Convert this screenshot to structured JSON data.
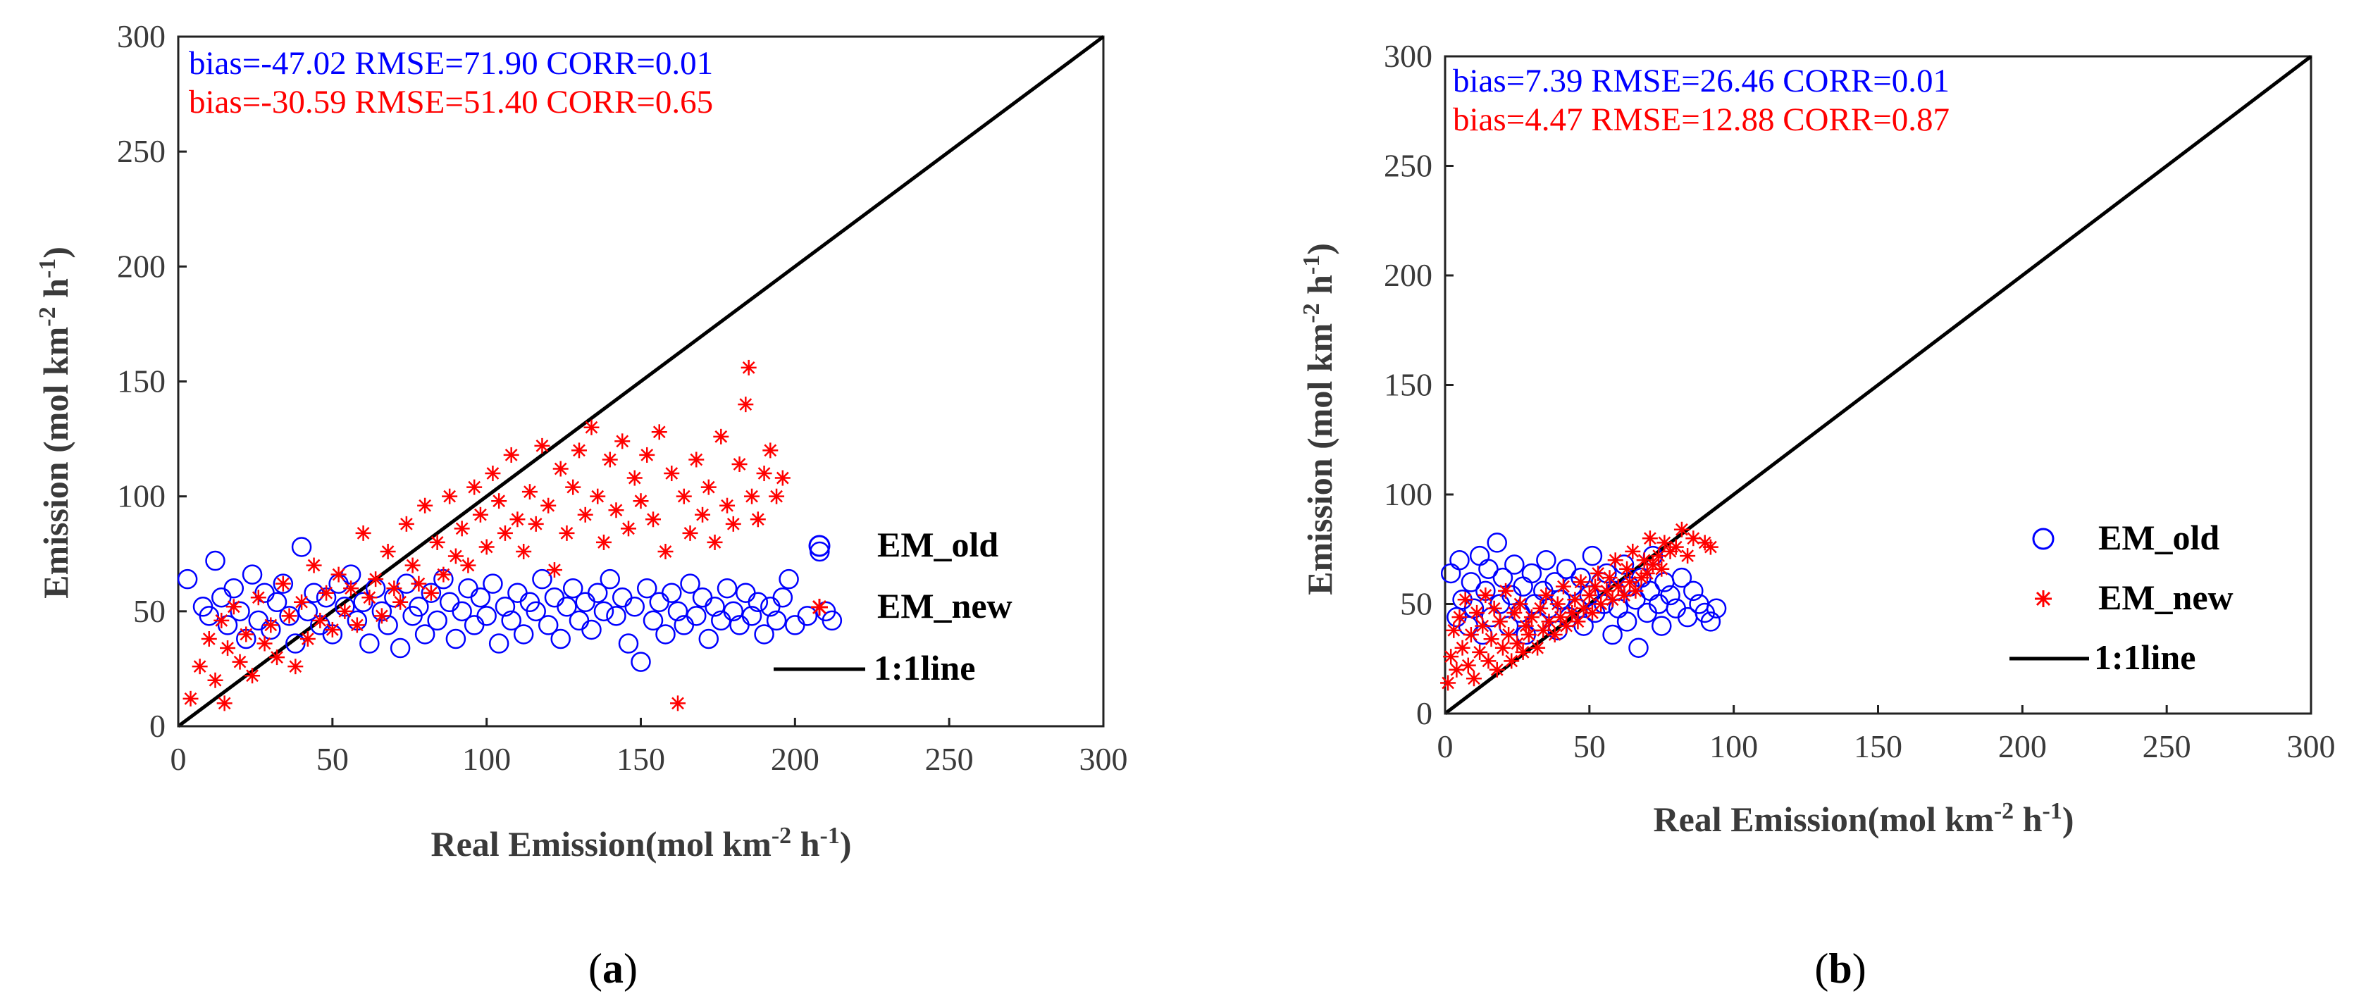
{
  "chart_data": [
    {
      "type": "scatter",
      "panel_label": "a",
      "xlabel": "Real Emission(mol km",
      "xlabel_sup1": "-2",
      "xlabel_mid": " h",
      "xlabel_sup2": "-1",
      "xlabel_end": ")",
      "ylabel": "Emission (mol km",
      "ylabel_sup1": "-2",
      "ylabel_mid": " h",
      "ylabel_sup2": "-1",
      "ylabel_end": ")",
      "xlim": [
        0,
        300
      ],
      "ylim": [
        0,
        300
      ],
      "xticks": [
        "0",
        "50",
        "100",
        "150",
        "200",
        "250",
        "300"
      ],
      "yticks": [
        "0",
        "50",
        "100",
        "150",
        "200",
        "250",
        "300"
      ],
      "stats": [
        {
          "text": "bias=-47.02 RMSE=71.90 CORR=0.01",
          "color": "#0000ff"
        },
        {
          "text": "bias=-30.59 RMSE=51.40 CORR=0.65",
          "color": "#ff0000"
        }
      ],
      "legend": [
        "EM_old",
        "EM_new",
        "1:1line"
      ],
      "series": [
        {
          "name": "EM_old",
          "marker": "circle",
          "color": "#0000ff",
          "x": [
            3,
            8,
            10,
            12,
            14,
            16,
            18,
            20,
            22,
            24,
            26,
            28,
            30,
            32,
            34,
            36,
            38,
            40,
            42,
            44,
            46,
            48,
            50,
            52,
            54,
            56,
            58,
            60,
            62,
            64,
            66,
            68,
            70,
            72,
            74,
            76,
            78,
            80,
            82,
            84,
            86,
            88,
            90,
            92,
            94,
            96,
            98,
            100,
            102,
            104,
            106,
            108,
            110,
            112,
            114,
            116,
            118,
            120,
            122,
            124,
            126,
            128,
            130,
            132,
            134,
            136,
            138,
            140,
            142,
            144,
            146,
            148,
            150,
            152,
            154,
            156,
            158,
            160,
            162,
            164,
            166,
            168,
            170,
            172,
            174,
            176,
            178,
            180,
            182,
            184,
            186,
            188,
            190,
            192,
            194,
            196,
            198,
            200,
            204,
            208,
            210,
            212
          ],
          "y": [
            64,
            52,
            48,
            72,
            56,
            44,
            60,
            50,
            38,
            66,
            46,
            58,
            42,
            54,
            62,
            48,
            36,
            78,
            50,
            58,
            44,
            56,
            40,
            62,
            52,
            66,
            46,
            54,
            36,
            60,
            50,
            44,
            56,
            34,
            62,
            48,
            52,
            40,
            58,
            46,
            64,
            54,
            38,
            50,
            60,
            44,
            56,
            48,
            62,
            36,
            52,
            46,
            58,
            40,
            54,
            50,
            64,
            44,
            56,
            38,
            52,
            60,
            46,
            54,
            42,
            58,
            50,
            64,
            48,
            56,
            36,
            52,
            28,
            60,
            46,
            54,
            40,
            58,
            50,
            44,
            62,
            48,
            56,
            38,
            52,
            46,
            60,
            50,
            44,
            58,
            48,
            54,
            40,
            52,
            46,
            56,
            64,
            44,
            48,
            76,
            50,
            46
          ]
        },
        {
          "name": "EM_new",
          "marker": "star",
          "color": "#ff0000",
          "x": [
            4,
            7,
            10,
            12,
            14,
            15,
            16,
            18,
            20,
            22,
            24,
            26,
            28,
            30,
            32,
            34,
            36,
            38,
            40,
            42,
            44,
            46,
            48,
            50,
            52,
            54,
            56,
            58,
            60,
            62,
            64,
            66,
            68,
            70,
            72,
            74,
            76,
            78,
            80,
            82,
            84,
            86,
            88,
            90,
            92,
            94,
            96,
            98,
            100,
            102,
            104,
            106,
            108,
            110,
            112,
            114,
            116,
            118,
            120,
            122,
            124,
            126,
            128,
            130,
            132,
            134,
            136,
            138,
            140,
            142,
            144,
            146,
            148,
            150,
            152,
            154,
            156,
            158,
            160,
            162,
            164,
            166,
            168,
            170,
            172,
            174,
            176,
            178,
            180,
            182,
            184,
            185,
            186,
            188,
            190,
            192,
            194,
            196
          ],
          "y": [
            12,
            26,
            38,
            20,
            46,
            10,
            34,
            52,
            28,
            40,
            22,
            56,
            36,
            44,
            30,
            62,
            48,
            26,
            54,
            38,
            70,
            46,
            58,
            42,
            66,
            50,
            60,
            44,
            84,
            56,
            64,
            48,
            76,
            60,
            54,
            88,
            70,
            62,
            96,
            58,
            80,
            66,
            100,
            74,
            86,
            70,
            104,
            92,
            78,
            110,
            98,
            84,
            118,
            90,
            76,
            102,
            88,
            122,
            96,
            68,
            112,
            84,
            104,
            120,
            92,
            130,
            100,
            80,
            116,
            94,
            124,
            86,
            108,
            98,
            118,
            90,
            128,
            76,
            110,
            10,
            100,
            84,
            116,
            92,
            104,
            80,
            126,
            96,
            88,
            114,
            140,
            156,
            100,
            90,
            110,
            120,
            100,
            108
          ]
        }
      ],
      "line_1_1": [
        [
          0,
          0
        ],
        [
          300,
          300
        ]
      ]
    },
    {
      "type": "scatter",
      "panel_label": "b",
      "xlabel": "Real Emission(mol km",
      "xlabel_sup1": "-2",
      "xlabel_mid": " h",
      "xlabel_sup2": "-1",
      "xlabel_end": ")",
      "ylabel": "Emission (mol km",
      "ylabel_sup1": "-2",
      "ylabel_mid": " h",
      "ylabel_sup2": "-1",
      "ylabel_end": ")",
      "xlim": [
        0,
        300
      ],
      "ylim": [
        0,
        300
      ],
      "xticks": [
        "0",
        "50",
        "100",
        "150",
        "200",
        "250",
        "300"
      ],
      "yticks": [
        "0",
        "50",
        "100",
        "150",
        "200",
        "250",
        "300"
      ],
      "stats": [
        {
          "text": "bias=7.39 RMSE=26.46 CORR=0.01",
          "color": "#0000ff"
        },
        {
          "text": "bias=4.47 RMSE=12.88 CORR=0.87",
          "color": "#ff0000"
        }
      ],
      "legend": [
        "EM_old",
        "EM_new",
        "1:1line"
      ],
      "series": [
        {
          "name": "EM_old",
          "marker": "circle",
          "color": "#0000ff",
          "x": [
            2,
            4,
            5,
            6,
            8,
            9,
            10,
            12,
            13,
            14,
            15,
            16,
            18,
            19,
            20,
            22,
            23,
            24,
            26,
            27,
            28,
            30,
            31,
            32,
            34,
            35,
            36,
            38,
            39,
            40,
            42,
            43,
            44,
            46,
            47,
            48,
            50,
            51,
            52,
            54,
            55,
            56,
            58,
            59,
            60,
            62,
            63,
            64,
            66,
            67,
            68,
            70,
            71,
            72,
            74,
            75,
            76,
            78,
            80,
            82,
            84,
            86,
            88,
            90,
            92,
            94
          ],
          "y": [
            64,
            44,
            70,
            52,
            40,
            60,
            48,
            72,
            36,
            56,
            66,
            44,
            78,
            50,
            62,
            40,
            54,
            68,
            46,
            58,
            36,
            64,
            50,
            42,
            56,
            70,
            48,
            60,
            38,
            52,
            66,
            44,
            58,
            48,
            62,
            40,
            54,
            72,
            46,
            60,
            50,
            64,
            36,
            56,
            48,
            68,
            42,
            58,
            52,
            30,
            62,
            46,
            56,
            72,
            50,
            40,
            60,
            54,
            48,
            62,
            44,
            56,
            50,
            46,
            42,
            48
          ]
        },
        {
          "name": "EM_new",
          "marker": "star",
          "color": "#ff0000",
          "x": [
            1,
            2,
            3,
            4,
            5,
            6,
            7,
            8,
            9,
            10,
            11,
            12,
            13,
            14,
            15,
            16,
            17,
            18,
            19,
            20,
            21,
            22,
            23,
            24,
            25,
            26,
            27,
            28,
            29,
            30,
            32,
            33,
            34,
            35,
            36,
            38,
            39,
            40,
            41,
            42,
            44,
            45,
            46,
            47,
            48,
            50,
            51,
            52,
            53,
            54,
            56,
            57,
            58,
            59,
            60,
            62,
            63,
            64,
            65,
            66,
            68,
            69,
            70,
            71,
            72,
            74,
            75,
            76,
            78,
            80,
            82,
            84,
            86,
            90,
            92
          ],
          "y": [
            14,
            26,
            38,
            20,
            44,
            30,
            52,
            22,
            36,
            16,
            46,
            28,
            40,
            54,
            24,
            34,
            48,
            20,
            42,
            30,
            56,
            36,
            24,
            46,
            32,
            50,
            28,
            40,
            36,
            44,
            30,
            48,
            38,
            54,
            42,
            36,
            50,
            44,
            58,
            40,
            46,
            52,
            42,
            60,
            48,
            54,
            46,
            58,
            64,
            50,
            56,
            62,
            52,
            70,
            58,
            54,
            66,
            60,
            74,
            56,
            62,
            70,
            64,
            80,
            68,
            72,
            66,
            78,
            74,
            76,
            84,
            72,
            80,
            78,
            76
          ]
        }
      ],
      "line_1_1": [
        [
          0,
          0
        ],
        [
          300,
          300
        ]
      ]
    }
  ]
}
